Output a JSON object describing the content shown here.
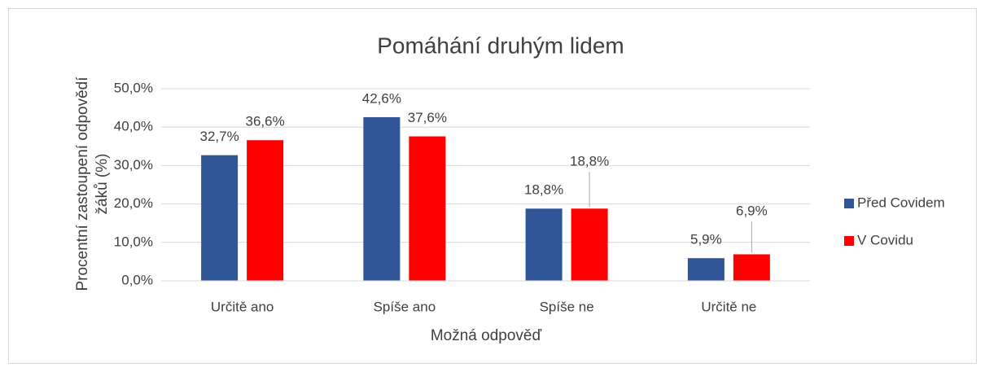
{
  "chart_data": {
    "type": "bar",
    "title": "Pomáhání druhým lidem",
    "x_label": "Možná odpověď",
    "y_label": "Procentní zastoupení odpovědí žáků (%)",
    "categories": [
      "Určitě ano",
      "Spíše ano",
      "Spíše ne",
      "Určitě ne"
    ],
    "series": [
      {
        "name": "Před Covidem",
        "color": "#2f5597",
        "values": [
          32.7,
          42.6,
          18.8,
          5.9
        ],
        "value_labels": [
          "32,7%",
          "42,6%",
          "18,8%",
          "5,9%"
        ]
      },
      {
        "name": "V Covidu",
        "color": "#ff0000",
        "values": [
          36.6,
          37.6,
          18.8,
          6.9
        ],
        "value_labels": [
          "36,6%",
          "37,6%",
          "18,8%",
          "6,9%"
        ]
      }
    ],
    "ylim": [
      0,
      50
    ],
    "yticks": [
      {
        "value": 0,
        "label": "0,0%"
      },
      {
        "value": 10,
        "label": "10,0%"
      },
      {
        "value": 20,
        "label": "20,0%"
      },
      {
        "value": 30,
        "label": "30,0%"
      },
      {
        "value": 40,
        "label": "40,0%"
      },
      {
        "value": 50,
        "label": "50,0%"
      }
    ],
    "grid": true,
    "legend": "right"
  }
}
